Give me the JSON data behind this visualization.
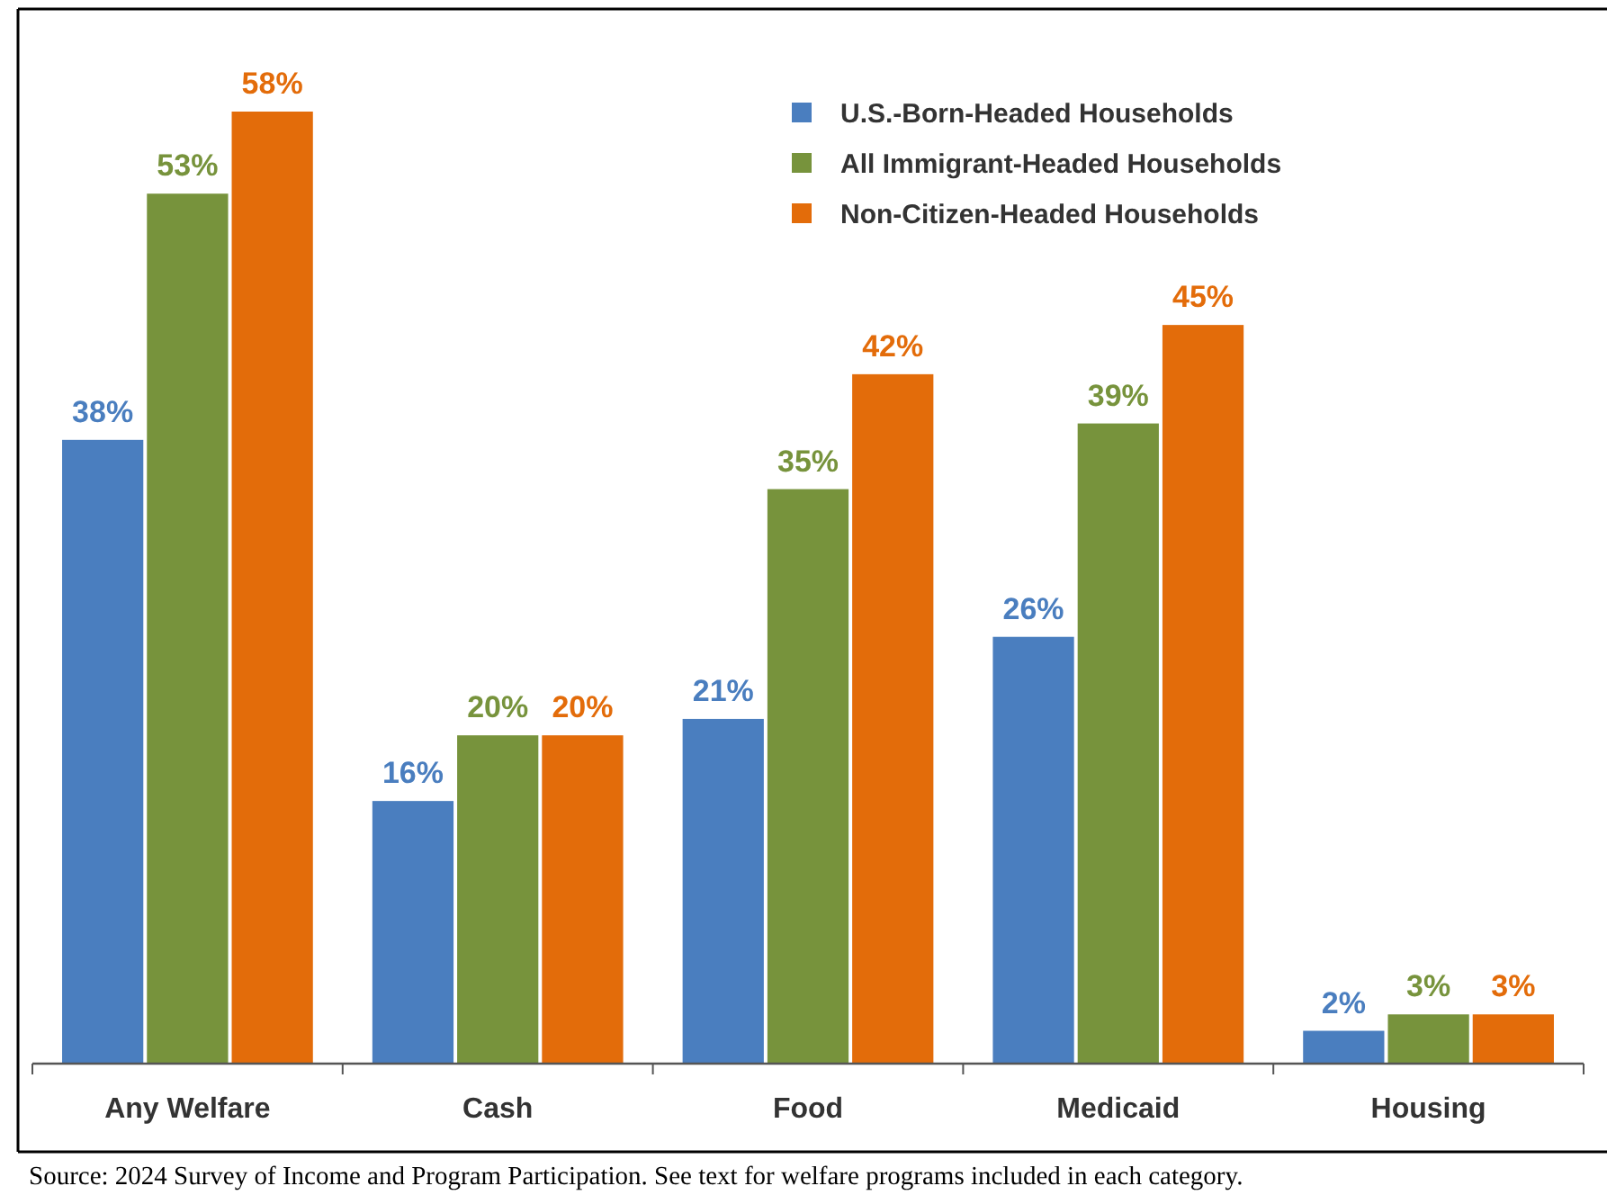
{
  "chart_data": {
    "type": "bar",
    "categories": [
      "Any Welfare",
      "Cash",
      "Food",
      "Medicaid",
      "Housing"
    ],
    "series": [
      {
        "name": "U.S.-Born-Headed Households",
        "color": "#4a7ebf",
        "values": [
          38,
          16,
          21,
          26,
          2
        ],
        "value_labels": [
          "38%",
          "16%",
          "21%",
          "26%",
          "2%"
        ]
      },
      {
        "name": "All Immigrant-Headed Households",
        "color": "#77933c",
        "values": [
          53,
          20,
          35,
          39,
          3
        ],
        "value_labels": [
          "53%",
          "20%",
          "35%",
          "39%",
          "3%"
        ]
      },
      {
        "name": "Non-Citizen-Headed Households",
        "color": "#e36c0a",
        "values": [
          58,
          20,
          42,
          45,
          3
        ],
        "value_labels": [
          "58%",
          "20%",
          "42%",
          "45%",
          "3%"
        ]
      }
    ],
    "legend": "top right",
    "annotations": [
      "Source: 2024 Survey of Income and Program Participation. See text for welfare programs included in each category."
    ]
  }
}
